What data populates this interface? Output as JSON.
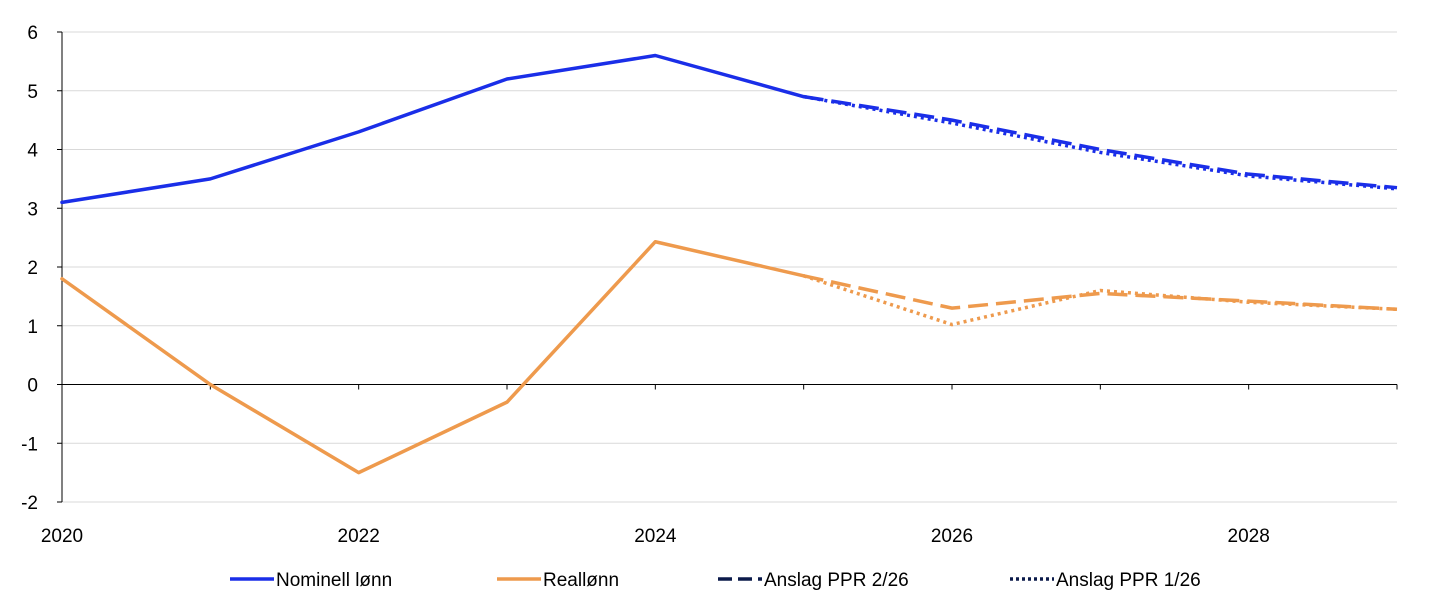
{
  "chart_data": {
    "type": "line",
    "title": "",
    "xlabel": "",
    "ylabel": "",
    "xlim": [
      2020,
      2029
    ],
    "ylim": [
      -2,
      6
    ],
    "y_ticks": [
      "-2",
      "-1",
      "0",
      "1",
      "2",
      "3",
      "4",
      "5",
      "6"
    ],
    "x_ticks": [
      "2020",
      "2022",
      "2024",
      "2026",
      "2028"
    ],
    "grid": "horizontal",
    "legend_position": "bottom",
    "series": [
      {
        "name": "Nominell lønn",
        "color": "#1a2ee8",
        "style": "solid",
        "x": [
          2020,
          2021,
          2022,
          2023,
          2024,
          2025
        ],
        "values": [
          3.1,
          3.5,
          4.3,
          5.2,
          5.6,
          4.9
        ]
      },
      {
        "name": "Reallønn",
        "color": "#ee9a4d",
        "style": "solid",
        "x": [
          2020,
          2021,
          2022,
          2023,
          2024,
          2025
        ],
        "values": [
          1.8,
          0.0,
          -1.5,
          -0.3,
          2.43,
          1.85
        ]
      },
      {
        "name": "Nominell lønn, Anslag PPR 2/26",
        "color": "#1a2ee8",
        "style": "dashed",
        "x": [
          2025,
          2026,
          2027,
          2028,
          2029
        ],
        "values": [
          4.9,
          4.5,
          4.0,
          3.58,
          3.35
        ]
      },
      {
        "name": "Nominell lønn, Anslag PPR 1/26",
        "color": "#1a2ee8",
        "style": "dotted",
        "x": [
          2025,
          2026,
          2027,
          2028,
          2029
        ],
        "values": [
          4.9,
          4.45,
          3.95,
          3.55,
          3.33
        ]
      },
      {
        "name": "Reallønn, Anslag PPR 2/26",
        "color": "#ee9a4d",
        "style": "dashed",
        "x": [
          2025,
          2026,
          2027,
          2028,
          2029
        ],
        "values": [
          1.85,
          1.3,
          1.55,
          1.42,
          1.28
        ]
      },
      {
        "name": "Reallønn, Anslag PPR 1/26",
        "color": "#ee9a4d",
        "style": "dotted",
        "x": [
          2025,
          2026,
          2027,
          2028,
          2029
        ],
        "values": [
          1.85,
          1.02,
          1.6,
          1.4,
          1.28
        ]
      }
    ],
    "legend": [
      {
        "label": "Nominell lønn",
        "color": "#1a2ee8",
        "style": "solid"
      },
      {
        "label": "Reallønn",
        "color": "#ee9a4d",
        "style": "solid"
      },
      {
        "label": "Anslag PPR 2/26",
        "color": "#0b1a4a",
        "style": "dashed"
      },
      {
        "label": "Anslag PPR 1/26",
        "color": "#0b1a4a",
        "style": "dotted"
      }
    ]
  }
}
